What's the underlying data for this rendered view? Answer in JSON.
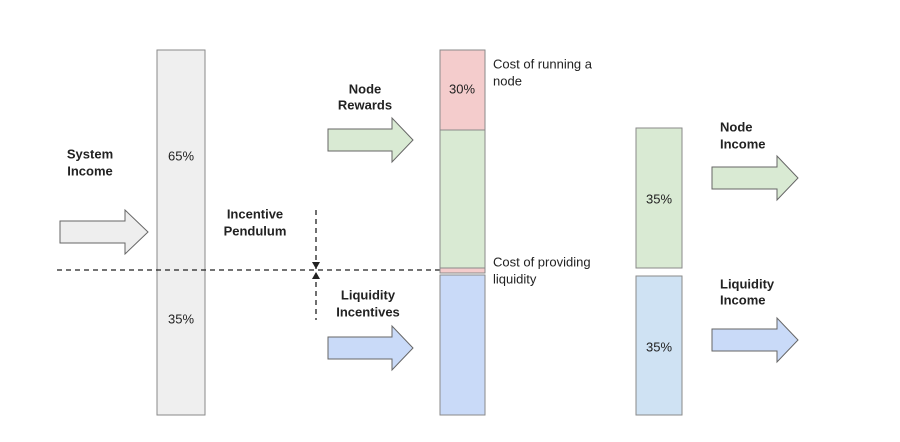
{
  "system_income": {
    "label": [
      "System",
      "Income"
    ],
    "upper_share": "65%",
    "lower_share": "35%"
  },
  "incentive_pendulum": {
    "label": [
      "Incentive",
      "Pendulum"
    ]
  },
  "node_rewards": {
    "label": [
      "Node",
      "Rewards"
    ],
    "cost_share": "30%",
    "cost_label": [
      "Cost of running a",
      "node"
    ]
  },
  "liquidity_incentives": {
    "label": [
      "Liquidity",
      "Incentives"
    ],
    "cost_label": [
      "Cost of providing",
      "liquidity"
    ]
  },
  "node_income": {
    "label": [
      "Node",
      "Income"
    ],
    "share": "35%"
  },
  "liquidity_income": {
    "label": [
      "Liquidity",
      "Income"
    ],
    "share": "35%"
  }
}
